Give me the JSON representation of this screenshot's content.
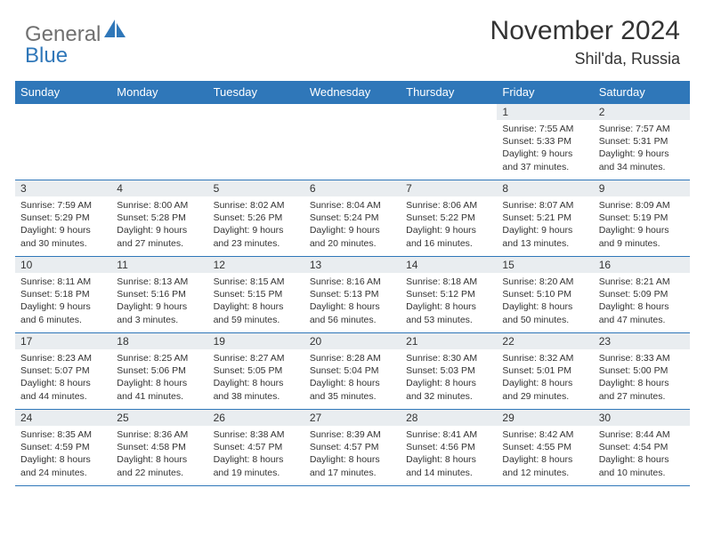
{
  "brand": {
    "word1": "General",
    "word2": "Blue"
  },
  "colors": {
    "accent": "#2f77b9",
    "daynum_bg": "#e9edf0",
    "text": "#333333",
    "logo_gray": "#707070"
  },
  "title": "November 2024",
  "location": "Shil'da, Russia",
  "weekdays": [
    "Sunday",
    "Monday",
    "Tuesday",
    "Wednesday",
    "Thursday",
    "Friday",
    "Saturday"
  ],
  "weeks": [
    [
      null,
      null,
      null,
      null,
      null,
      {
        "n": "1",
        "sr": "Sunrise: 7:55 AM",
        "ss": "Sunset: 5:33 PM",
        "dl": "Daylight: 9 hours and 37 minutes."
      },
      {
        "n": "2",
        "sr": "Sunrise: 7:57 AM",
        "ss": "Sunset: 5:31 PM",
        "dl": "Daylight: 9 hours and 34 minutes."
      }
    ],
    [
      {
        "n": "3",
        "sr": "Sunrise: 7:59 AM",
        "ss": "Sunset: 5:29 PM",
        "dl": "Daylight: 9 hours and 30 minutes."
      },
      {
        "n": "4",
        "sr": "Sunrise: 8:00 AM",
        "ss": "Sunset: 5:28 PM",
        "dl": "Daylight: 9 hours and 27 minutes."
      },
      {
        "n": "5",
        "sr": "Sunrise: 8:02 AM",
        "ss": "Sunset: 5:26 PM",
        "dl": "Daylight: 9 hours and 23 minutes."
      },
      {
        "n": "6",
        "sr": "Sunrise: 8:04 AM",
        "ss": "Sunset: 5:24 PM",
        "dl": "Daylight: 9 hours and 20 minutes."
      },
      {
        "n": "7",
        "sr": "Sunrise: 8:06 AM",
        "ss": "Sunset: 5:22 PM",
        "dl": "Daylight: 9 hours and 16 minutes."
      },
      {
        "n": "8",
        "sr": "Sunrise: 8:07 AM",
        "ss": "Sunset: 5:21 PM",
        "dl": "Daylight: 9 hours and 13 minutes."
      },
      {
        "n": "9",
        "sr": "Sunrise: 8:09 AM",
        "ss": "Sunset: 5:19 PM",
        "dl": "Daylight: 9 hours and 9 minutes."
      }
    ],
    [
      {
        "n": "10",
        "sr": "Sunrise: 8:11 AM",
        "ss": "Sunset: 5:18 PM",
        "dl": "Daylight: 9 hours and 6 minutes."
      },
      {
        "n": "11",
        "sr": "Sunrise: 8:13 AM",
        "ss": "Sunset: 5:16 PM",
        "dl": "Daylight: 9 hours and 3 minutes."
      },
      {
        "n": "12",
        "sr": "Sunrise: 8:15 AM",
        "ss": "Sunset: 5:15 PM",
        "dl": "Daylight: 8 hours and 59 minutes."
      },
      {
        "n": "13",
        "sr": "Sunrise: 8:16 AM",
        "ss": "Sunset: 5:13 PM",
        "dl": "Daylight: 8 hours and 56 minutes."
      },
      {
        "n": "14",
        "sr": "Sunrise: 8:18 AM",
        "ss": "Sunset: 5:12 PM",
        "dl": "Daylight: 8 hours and 53 minutes."
      },
      {
        "n": "15",
        "sr": "Sunrise: 8:20 AM",
        "ss": "Sunset: 5:10 PM",
        "dl": "Daylight: 8 hours and 50 minutes."
      },
      {
        "n": "16",
        "sr": "Sunrise: 8:21 AM",
        "ss": "Sunset: 5:09 PM",
        "dl": "Daylight: 8 hours and 47 minutes."
      }
    ],
    [
      {
        "n": "17",
        "sr": "Sunrise: 8:23 AM",
        "ss": "Sunset: 5:07 PM",
        "dl": "Daylight: 8 hours and 44 minutes."
      },
      {
        "n": "18",
        "sr": "Sunrise: 8:25 AM",
        "ss": "Sunset: 5:06 PM",
        "dl": "Daylight: 8 hours and 41 minutes."
      },
      {
        "n": "19",
        "sr": "Sunrise: 8:27 AM",
        "ss": "Sunset: 5:05 PM",
        "dl": "Daylight: 8 hours and 38 minutes."
      },
      {
        "n": "20",
        "sr": "Sunrise: 8:28 AM",
        "ss": "Sunset: 5:04 PM",
        "dl": "Daylight: 8 hours and 35 minutes."
      },
      {
        "n": "21",
        "sr": "Sunrise: 8:30 AM",
        "ss": "Sunset: 5:03 PM",
        "dl": "Daylight: 8 hours and 32 minutes."
      },
      {
        "n": "22",
        "sr": "Sunrise: 8:32 AM",
        "ss": "Sunset: 5:01 PM",
        "dl": "Daylight: 8 hours and 29 minutes."
      },
      {
        "n": "23",
        "sr": "Sunrise: 8:33 AM",
        "ss": "Sunset: 5:00 PM",
        "dl": "Daylight: 8 hours and 27 minutes."
      }
    ],
    [
      {
        "n": "24",
        "sr": "Sunrise: 8:35 AM",
        "ss": "Sunset: 4:59 PM",
        "dl": "Daylight: 8 hours and 24 minutes."
      },
      {
        "n": "25",
        "sr": "Sunrise: 8:36 AM",
        "ss": "Sunset: 4:58 PM",
        "dl": "Daylight: 8 hours and 22 minutes."
      },
      {
        "n": "26",
        "sr": "Sunrise: 8:38 AM",
        "ss": "Sunset: 4:57 PM",
        "dl": "Daylight: 8 hours and 19 minutes."
      },
      {
        "n": "27",
        "sr": "Sunrise: 8:39 AM",
        "ss": "Sunset: 4:57 PM",
        "dl": "Daylight: 8 hours and 17 minutes."
      },
      {
        "n": "28",
        "sr": "Sunrise: 8:41 AM",
        "ss": "Sunset: 4:56 PM",
        "dl": "Daylight: 8 hours and 14 minutes."
      },
      {
        "n": "29",
        "sr": "Sunrise: 8:42 AM",
        "ss": "Sunset: 4:55 PM",
        "dl": "Daylight: 8 hours and 12 minutes."
      },
      {
        "n": "30",
        "sr": "Sunrise: 8:44 AM",
        "ss": "Sunset: 4:54 PM",
        "dl": "Daylight: 8 hours and 10 minutes."
      }
    ]
  ]
}
